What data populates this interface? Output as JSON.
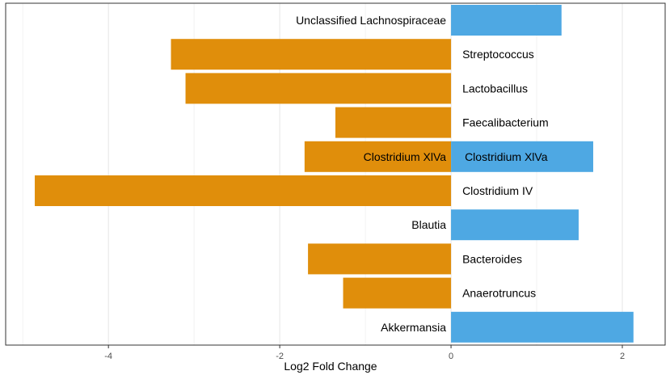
{
  "chart_data": {
    "type": "bar",
    "orientation": "horizontal",
    "xlabel": "Log2 Fold Change",
    "ylabel": "",
    "xlim": [
      -5.2,
      2.5
    ],
    "x_ticks": [
      {
        "value": -4,
        "label": "-4"
      },
      {
        "value": -2,
        "label": "-2"
      },
      {
        "value": 0,
        "label": "0"
      },
      {
        "value": 2,
        "label": "2"
      }
    ],
    "grid": true,
    "colors": {
      "negative": "#E08E0B",
      "positive": "#4EA8E3"
    },
    "bars": [
      {
        "row": 0,
        "label": "Unclassified Lachnospiraceae",
        "value": 1.29
      },
      {
        "row": 1,
        "label": "Streptococcus",
        "value": -3.27
      },
      {
        "row": 2,
        "label": "Lactobacillus",
        "value": -3.1
      },
      {
        "row": 3,
        "label": "Faecalibacterium",
        "value": -1.35
      },
      {
        "row": 4,
        "label": "Clostridium XlVa",
        "value": -1.71
      },
      {
        "row": 4,
        "label": "Clostridium XlVa",
        "value": 1.66
      },
      {
        "row": 5,
        "label": "Clostridium IV",
        "value": -4.86
      },
      {
        "row": 6,
        "label": "Blautia",
        "value": 1.49
      },
      {
        "row": 7,
        "label": "Bacteroides",
        "value": -1.67
      },
      {
        "row": 8,
        "label": "Anaerotruncus",
        "value": -1.26
      },
      {
        "row": 9,
        "label": "Akkermansia",
        "value": 2.13
      }
    ],
    "row_count": 10
  }
}
